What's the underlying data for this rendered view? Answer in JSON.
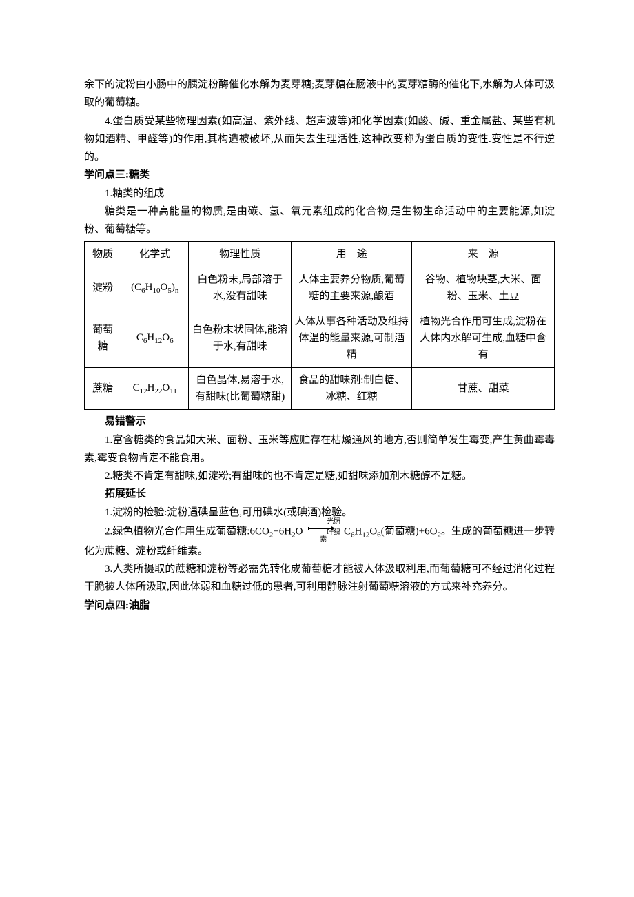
{
  "para1_part1": "余下的淀粉由小肠中的胰淀粉酶催化水解为麦芽糖;麦芽糖在肠液中的麦芽糖酶的催化下,水解为人体可汲取的葡萄糖。",
  "para2": "4.蛋白质受某些物理因素(如高温、紫外线、超声波等)和化学因素(如酸、碱、重金属盐、某些有机物如酒精、甲醛等)的作用,其构造被破坏,从而失去生理活性,这种改变称为蛋白质的变性.变性是不行逆的。",
  "heading3": "学问点三:糖类",
  "para3": "1.糖类的组成",
  "para4": "糖类是一种高能量的物质,是由碳、氢、氧元素组成的化合物,是生物生命活动中的主要能源,如淀粉、葡萄糖等。",
  "table": {
    "headers": [
      "物质",
      "化学式",
      "物理性质",
      "用　途",
      "来　源"
    ],
    "rows": [
      {
        "name": "淀粉",
        "formula_html": "(C<sub>6</sub>H<sub>10</sub>O<sub>5</sub>)<sub>n</sub>",
        "prop": "白色粉末,局部溶于水,没有甜味",
        "use": "人体主要养分物质,葡萄糖的主要来源,酿酒",
        "source": "谷物、植物块茎,大米、面粉、玉米、土豆"
      },
      {
        "name": "葡萄糖",
        "formula_html": "C<sub>6</sub>H<sub>12</sub>O<sub>6</sub>",
        "prop": "白色粉末状固体,能溶于水,有甜味",
        "use": "人体从事各种活动及维持体温的能量来源,可制酒精",
        "source": "植物光合作用可生成,淀粉在人体内水解可生成,血糖中含有"
      },
      {
        "name": "蔗糖",
        "formula_html": "C<sub>12</sub>H<sub>22</sub>O<sub>11</sub>",
        "prop": "白色晶体,易溶于水,有甜味(比葡萄糖甜)",
        "use": "食品的甜味剂:制白糖、冰糖、红糖",
        "source": "甘蔗、甜菜"
      }
    ]
  },
  "warn_title": "易错警示",
  "warn1_a": "1.富含糖类的食品如大米、面粉、玉米等应贮存在枯燥通风的地方,否则简单发生霉变,产生黄曲霉毒素,",
  "warn1_b": "霉变食物肯定不能食用。",
  "warn2": "2.糖类不肯定有甜味,如淀粉;有甜味的也不肯定是糖,如甜味添加剂木糖醇不是糖。",
  "extend_title": "拓展延长",
  "extend1": "1.淀粉的检验:淀粉遇碘呈蓝色,可用碘水(或碘酒)检验。",
  "extend2_a": "2.绿色植物光合作用生成葡萄糖:6CO",
  "extend2_b": "+6H",
  "extend2_c": "O",
  "extend2_top": "光照",
  "extend2_bot": "叶绿素",
  "extend2_d": "C",
  "extend2_e": "H",
  "extend2_f": "O",
  "extend2_g": "(葡萄糖)+6O",
  "extend2_h": "。生成的葡萄糖进一步转化为蔗糖、淀粉或纤维素。",
  "extend3": "3.人类所摄取的蔗糖和淀粉等必需先转化成葡萄糖才能被人体汲取利用,而葡萄糖可不经过消化过程干脆被人体所汲取,因此体弱和血糖过低的患者,可利用静脉注射葡萄糖溶液的方式来补充养分。",
  "heading4": "学问点四:油脂"
}
